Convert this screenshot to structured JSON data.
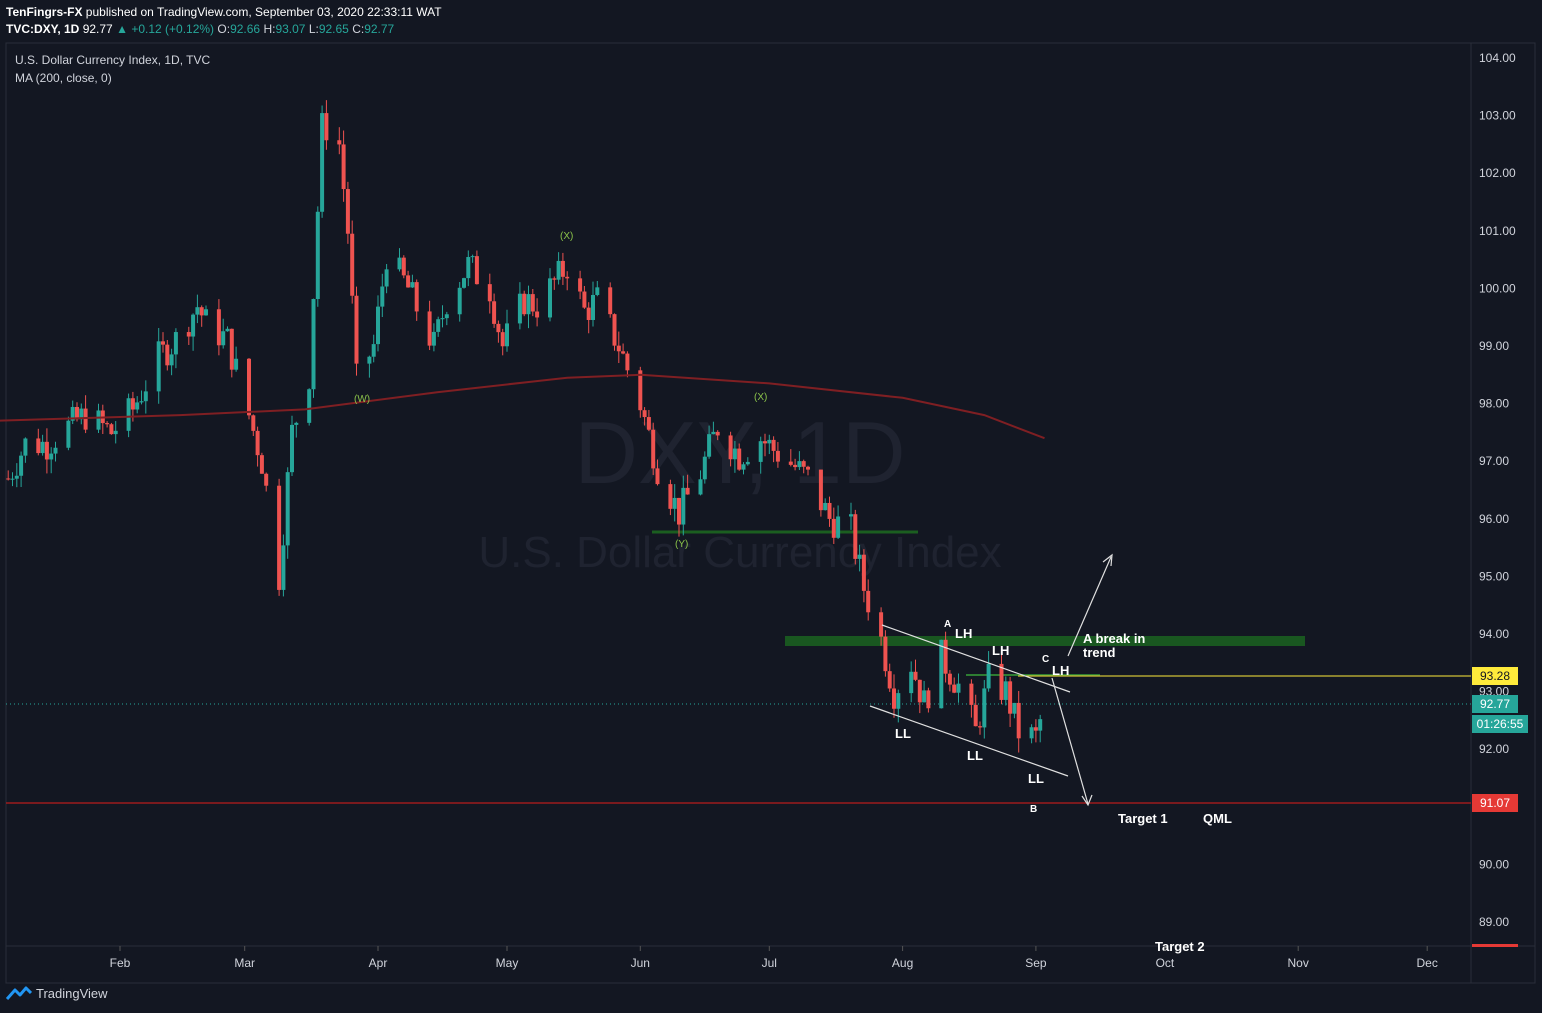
{
  "header": {
    "publisher": "TenFingrs-FX",
    "published_on": "published on TradingView.com, September 03, 2020 22:33:11 WAT",
    "symbol_line": {
      "symbol": "TVC:DXY, 1D",
      "last": "92.77",
      "change": "+0.12 (+0.12%)",
      "o_label": "O:",
      "o": "92.66",
      "h_label": "H:",
      "h": "93.07",
      "l_label": "L:",
      "l": "92.65",
      "c_label": "C:",
      "c": "92.77"
    }
  },
  "legend": {
    "title": "U.S. Dollar Currency Index, 1D, TVC",
    "indicator": "MA (200, close, 0)"
  },
  "watermark": {
    "symbol": "DXY, 1D",
    "name": "U.S. Dollar Currency Index"
  },
  "footer": {
    "brand": "TradingView"
  },
  "colors": {
    "background": "#131722",
    "up": "#26a69a",
    "down": "#ef5350",
    "ma": "#7f1f23",
    "support_line": "#b71c1c",
    "yellow_level": "#ffeb3b",
    "zone": "#1b5e20",
    "text": "#d1d4dc"
  },
  "chart_data": {
    "type": "candlestick",
    "title": "U.S. Dollar Currency Index, 1D, TVC",
    "y_ticks": [
      "104.00",
      "103.00",
      "102.00",
      "101.00",
      "100.00",
      "99.00",
      "98.00",
      "97.00",
      "96.00",
      "95.00",
      "94.00",
      "93.00",
      "92.00",
      "90.00",
      "89.00"
    ],
    "ylim": [
      88.6,
      104.5
    ],
    "x_ticks": [
      "Feb",
      "Mar",
      "Apr",
      "May",
      "Jun",
      "Jul",
      "Aug",
      "Sep",
      "Oct",
      "Nov",
      "Dec"
    ],
    "grid": false,
    "candles_close_approx": [
      {
        "x": "2020-01-06",
        "c": 96.7
      },
      {
        "x": "2020-01-10",
        "c": 97.3
      },
      {
        "x": "2020-01-15",
        "c": 97.3
      },
      {
        "x": "2020-01-20",
        "c": 97.6
      },
      {
        "x": "2020-01-24",
        "c": 97.8
      },
      {
        "x": "2020-01-30",
        "c": 97.5
      },
      {
        "x": "2020-02-04",
        "c": 97.9
      },
      {
        "x": "2020-02-10",
        "c": 98.8
      },
      {
        "x": "2020-02-14",
        "c": 99.1
      },
      {
        "x": "2020-02-19",
        "c": 99.7
      },
      {
        "x": "2020-02-21",
        "c": 99.4
      },
      {
        "x": "2020-02-26",
        "c": 99.1
      },
      {
        "x": "2020-03-02",
        "c": 97.8
      },
      {
        "x": "2020-03-05",
        "c": 97.0
      },
      {
        "x": "2020-03-09",
        "c": 95.0
      },
      {
        "x": "2020-03-12",
        "c": 97.5
      },
      {
        "x": "2020-03-16",
        "c": 98.5
      },
      {
        "x": "2020-03-19",
        "c": 102.8
      },
      {
        "x": "2020-03-20",
        "c": 102.8
      },
      {
        "x": "2020-03-23",
        "c": 102.5
      },
      {
        "x": "2020-03-25",
        "c": 101.0
      },
      {
        "x": "2020-03-27",
        "c": 98.4
      },
      {
        "x": "2020-03-31",
        "c": 99.0
      },
      {
        "x": "2020-04-03",
        "c": 100.6
      },
      {
        "x": "2020-04-08",
        "c": 100.0
      },
      {
        "x": "2020-04-14",
        "c": 99.0
      },
      {
        "x": "2020-04-17",
        "c": 99.8
      },
      {
        "x": "2020-04-22",
        "c": 100.4
      },
      {
        "x": "2020-04-27",
        "c": 100.0
      },
      {
        "x": "2020-04-30",
        "c": 99.0
      },
      {
        "x": "2020-05-05",
        "c": 99.8
      },
      {
        "x": "2020-05-08",
        "c": 99.7
      },
      {
        "x": "2020-05-12",
        "c": 100.1
      },
      {
        "x": "2020-05-15",
        "c": 100.4
      },
      {
        "x": "2020-05-19",
        "c": 99.6
      },
      {
        "x": "2020-05-22",
        "c": 99.8
      },
      {
        "x": "2020-05-27",
        "c": 99.0
      },
      {
        "x": "2020-06-01",
        "c": 98.0
      },
      {
        "x": "2020-06-05",
        "c": 96.9
      },
      {
        "x": "2020-06-10",
        "c": 96.1
      },
      {
        "x": "2020-06-15",
        "c": 96.8
      },
      {
        "x": "2020-06-19",
        "c": 97.6
      },
      {
        "x": "2020-06-24",
        "c": 97.1
      },
      {
        "x": "2020-06-29",
        "c": 97.4
      },
      {
        "x": "2020-07-02",
        "c": 97.2
      },
      {
        "x": "2020-07-07",
        "c": 96.9
      },
      {
        "x": "2020-07-10",
        "c": 96.7
      },
      {
        "x": "2020-07-15",
        "c": 96.0
      },
      {
        "x": "2020-07-20",
        "c": 95.8
      },
      {
        "x": "2020-07-23",
        "c": 94.8
      },
      {
        "x": "2020-07-27",
        "c": 93.9
      },
      {
        "x": "2020-07-30",
        "c": 93.0
      },
      {
        "x": "2020-08-03",
        "c": 93.5
      },
      {
        "x": "2020-08-06",
        "c": 92.8
      },
      {
        "x": "2020-08-10",
        "c": 93.6
      },
      {
        "x": "2020-08-14",
        "c": 93.1
      },
      {
        "x": "2020-08-18",
        "c": 92.3
      },
      {
        "x": "2020-08-21",
        "c": 93.2
      },
      {
        "x": "2020-08-25",
        "c": 93.0
      },
      {
        "x": "2020-08-28",
        "c": 92.3
      },
      {
        "x": "2020-09-01",
        "c": 92.2
      },
      {
        "x": "2020-09-03",
        "c": 92.77
      }
    ],
    "ma200_approx": [
      {
        "x": "2020-01-02",
        "v": 97.7
      },
      {
        "x": "2020-02-15",
        "v": 97.8
      },
      {
        "x": "2020-03-15",
        "v": 97.9
      },
      {
        "x": "2020-04-15",
        "v": 98.2
      },
      {
        "x": "2020-05-15",
        "v": 98.45
      },
      {
        "x": "2020-06-01",
        "v": 98.5
      },
      {
        "x": "2020-07-01",
        "v": 98.35
      },
      {
        "x": "2020-08-01",
        "v": 98.1
      },
      {
        "x": "2020-08-20",
        "v": 97.8
      },
      {
        "x": "2020-09-03",
        "v": 97.4
      }
    ],
    "price_labels": [
      {
        "value": "93.28",
        "kind": "level"
      },
      {
        "value": "92.77",
        "kind": "last"
      },
      {
        "value": "01:26:55",
        "kind": "countdown"
      },
      {
        "value": "91.07",
        "kind": "support"
      }
    ],
    "annotations": {
      "wave_labels": [
        "(W)",
        "(X)",
        "(Y)",
        "(X)"
      ],
      "swing_labels": [
        "LH",
        "LH",
        "LH",
        "LL",
        "LL",
        "LL"
      ],
      "point_labels": [
        "A",
        "B",
        "C"
      ],
      "break_note": "A break in trend",
      "target1": "Target 1",
      "qml": "QML",
      "target2": "Target 2"
    }
  }
}
